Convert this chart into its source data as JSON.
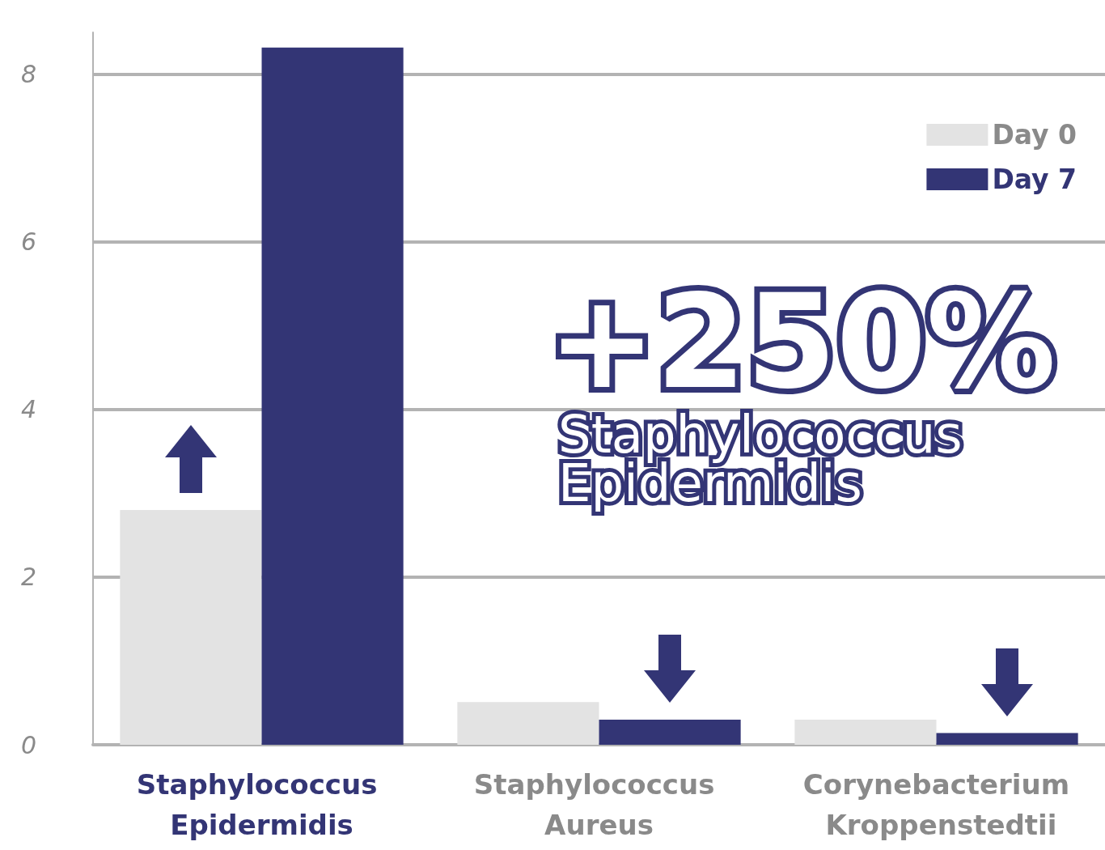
{
  "chart_data": {
    "type": "bar",
    "categories": [
      "Staphylococcus Epidermidis",
      "Staphylococcus Aureus",
      "Corynebacterium Kroppenstedtii"
    ],
    "series": [
      {
        "name": "Day 0",
        "color": "#e3e3e3",
        "values": [
          2.8,
          0.51,
          0.3
        ]
      },
      {
        "name": "Day 7",
        "color": "#333575",
        "values": [
          8.32,
          0.3,
          0.14
        ]
      }
    ],
    "ylim": [
      0,
      8.5
    ],
    "yticks": [
      0,
      2,
      4,
      6,
      8
    ],
    "grid": "y",
    "legend": "top right",
    "annotations": [
      "+250%",
      "Staphylococcus Epidermidis"
    ]
  }
}
